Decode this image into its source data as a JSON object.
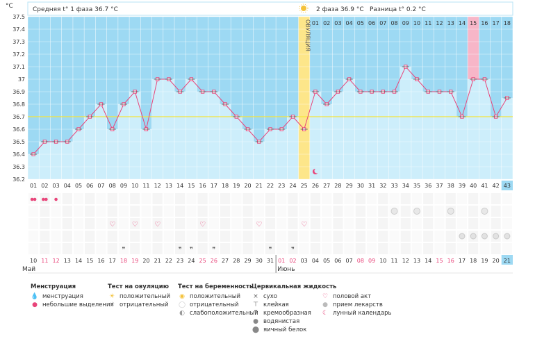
{
  "header": {
    "phase1_label": "Средняя t° 1 фаза 36.7 °C",
    "phase2_label": "2 фаза 36.9 °C",
    "diff_label": "Разница t° 0.2 °C"
  },
  "chart_data": {
    "type": "line",
    "ylabel": "°C",
    "ylim": [
      36.2,
      37.5
    ],
    "yticks": [
      "36.2",
      "36.3",
      "36.4",
      "36.5",
      "36.6",
      "36.7",
      "36.8",
      "36.9",
      "37",
      "37.1",
      "37.2",
      "37.3",
      "37.4",
      "37.5"
    ],
    "ovulation_label": "ОВУЛЯЦИЯ",
    "ovulation_day": 25,
    "coverline": 36.7,
    "cycle_days": [
      "01",
      "02",
      "03",
      "04",
      "05",
      "06",
      "07",
      "08",
      "09",
      "10",
      "11",
      "12",
      "13",
      "14",
      "15",
      "16",
      "17",
      "18",
      "19",
      "20",
      "21",
      "22",
      "23",
      "24",
      "25",
      "26",
      "27",
      "28",
      "29",
      "30",
      "31",
      "32",
      "33",
      "34",
      "35",
      "36",
      "37",
      "38",
      "39",
      "40",
      "41",
      "42",
      "43"
    ],
    "temperatures": [
      36.4,
      36.5,
      36.5,
      36.5,
      36.6,
      36.7,
      36.8,
      36.6,
      36.8,
      36.9,
      36.6,
      37.0,
      37.0,
      36.9,
      37.0,
      36.9,
      36.9,
      36.8,
      36.7,
      36.6,
      36.5,
      36.6,
      36.6,
      36.7,
      36.6,
      36.9,
      36.8,
      36.9,
      37.0,
      36.9,
      36.9,
      36.9,
      36.9,
      37.1,
      37.0,
      36.9,
      36.9,
      36.9,
      36.7,
      37.0,
      37.0,
      36.7,
      36.85
    ],
    "phase2_day_labels": [
      "01",
      "02",
      "03",
      "04",
      "05",
      "06",
      "07",
      "08",
      "09",
      "10",
      "11",
      "12",
      "13",
      "14",
      "15",
      "16",
      "17",
      "18"
    ],
    "calendar_dates": [
      "10",
      "11",
      "12",
      "13",
      "14",
      "15",
      "16",
      "17",
      "18",
      "19",
      "20",
      "21",
      "22",
      "23",
      "24",
      "25",
      "26",
      "27",
      "28",
      "29",
      "30",
      "31",
      "01",
      "02",
      "03",
      "04",
      "05",
      "06",
      "07",
      "08",
      "09",
      "10",
      "11",
      "12",
      "13",
      "14",
      "15",
      "16",
      "17",
      "18",
      "19",
      "20",
      "21"
    ],
    "weekend_dates_idx": [
      1,
      2,
      8,
      9,
      15,
      16,
      22,
      23,
      29,
      30,
      36,
      37
    ],
    "month_may": "Май",
    "month_june": "Июнь",
    "series": []
  },
  "legend": {
    "menstruation": {
      "title": "Менструация",
      "items": [
        "менструация",
        "небольшие выделения"
      ]
    },
    "ovulation_test": {
      "title": "Тест на овуляцию",
      "items": [
        "положительный",
        "отрицательный"
      ]
    },
    "pregnancy_test": {
      "title": "Тест на беременность",
      "items": [
        "положительный",
        "отрицательный",
        "слабоположительный"
      ]
    },
    "cervical": {
      "title": "Цервикальная жидкость",
      "items": [
        "сухо",
        "клейкая",
        "кремообразная",
        "водянистая",
        "яичный белок"
      ]
    },
    "other": {
      "items": [
        "половой акт",
        "прием лекарств",
        "лунный календарь"
      ]
    }
  },
  "colors": {
    "grid_bg": "#9dd9f3",
    "fill": "#cdeefb",
    "line": "#e8457a",
    "ovulation": "#fde68a",
    "pink_col": "#f7b6c8",
    "coverline": "#f6e53b"
  }
}
